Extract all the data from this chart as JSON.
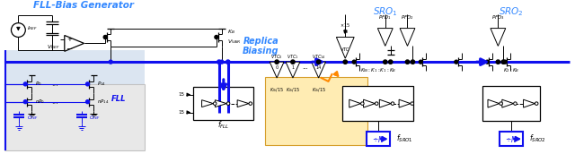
{
  "bg": "#ffffff",
  "blue": "#1010ee",
  "black": "#000000",
  "title_color": "#3388ff",
  "orange": "#ff8800",
  "orange_bg": "#ffe8a0",
  "gray_bg": "#cccccc",
  "light_blue_bg": "#b8cce4",
  "fll_title": "FLL-Bias Generator",
  "sro1_title": "SRO",
  "sro2_title": "SRO",
  "replica_text": "Replica\nBiasing"
}
